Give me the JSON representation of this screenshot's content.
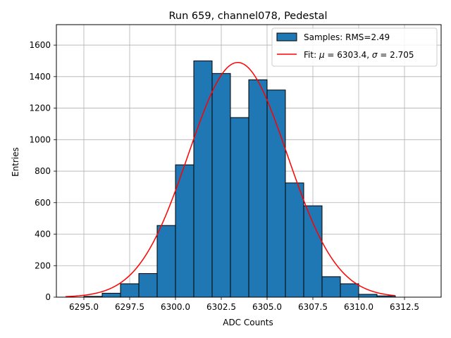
{
  "chart_data": {
    "type": "bar",
    "title": "Run 659, channel078, Pedestal",
    "xlabel": "ADC Counts",
    "ylabel": "Entries",
    "xlim": [
      6293.5,
      6314.5
    ],
    "ylim": [
      0,
      1730
    ],
    "x_ticks": [
      6295.0,
      6297.5,
      6300.0,
      6302.5,
      6305.0,
      6307.5,
      6310.0,
      6312.5
    ],
    "x_tick_labels": [
      "6295.0",
      "6297.5",
      "6300.0",
      "6302.5",
      "6305.0",
      "6307.5",
      "6310.0",
      "6312.5"
    ],
    "y_ticks": [
      0,
      200,
      400,
      600,
      800,
      1000,
      1200,
      1400,
      1600
    ],
    "y_tick_labels": [
      "0",
      "200",
      "400",
      "600",
      "800",
      "1000",
      "1200",
      "1400",
      "1600"
    ],
    "grid": true,
    "legend_position": "top-right",
    "histogram": {
      "name": "Samples: RMS=2.49",
      "bin_edges": [
        6295.0,
        6296.0,
        6297.0,
        6298.0,
        6299.0,
        6300.0,
        6301.0,
        6302.0,
        6303.0,
        6304.0,
        6305.0,
        6306.0,
        6307.0,
        6308.0,
        6309.0,
        6310.0,
        6311.0,
        6312.0
      ],
      "counts": [
        5,
        25,
        85,
        150,
        455,
        840,
        1500,
        1420,
        1140,
        1380,
        1315,
        725,
        580,
        130,
        85,
        18,
        8
      ],
      "color": "#1f77b4"
    },
    "fit": {
      "name_prefix": "Fit: ",
      "name_mu": "μ",
      "name_mid": " = 6303.4, ",
      "name_sigma": "σ",
      "name_suffix": " = 2.705",
      "mu": 6303.4,
      "sigma": 2.705,
      "amplitude": 1490,
      "x_range": [
        6294.0,
        6312.0
      ],
      "color": "#ff0000"
    }
  }
}
